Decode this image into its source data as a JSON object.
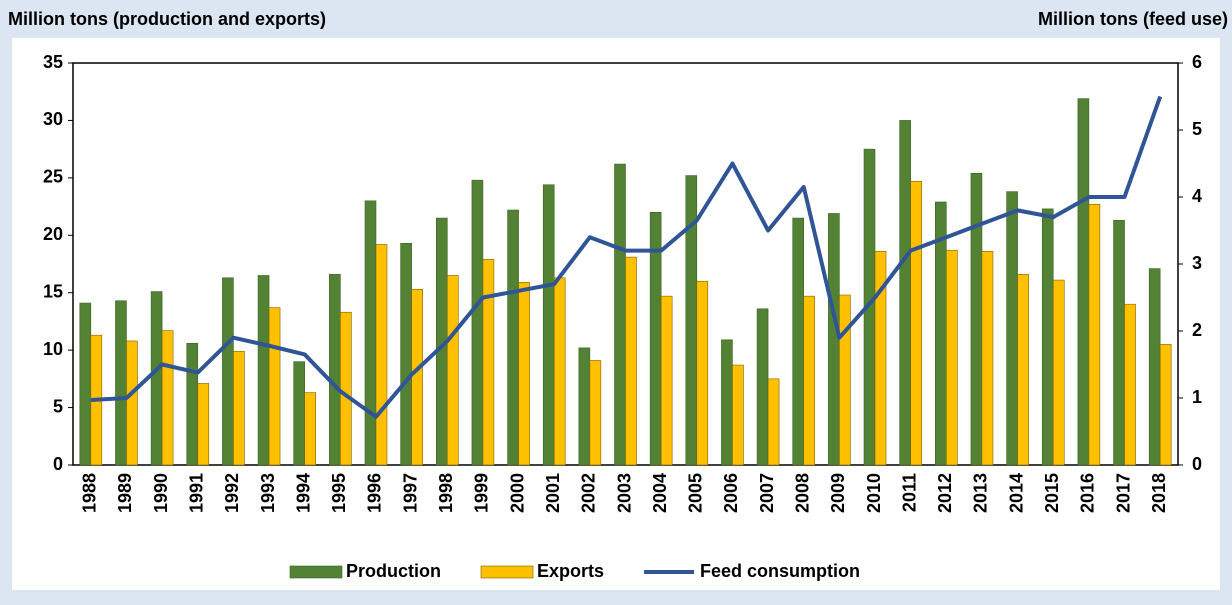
{
  "chart_data": {
    "type": "bar",
    "ylabel": "Million tons (production and exports)",
    "y2label": "Million tons (feed use)",
    "categories": [
      "1988",
      "1989",
      "1990",
      "1991",
      "1992",
      "1993",
      "1994",
      "1995",
      "1996",
      "1997",
      "1998",
      "1999",
      "2000",
      "2001",
      "2002",
      "2003",
      "2004",
      "2005",
      "2006",
      "2007",
      "2008",
      "2009",
      "2010",
      "2011",
      "2012",
      "2013",
      "2014",
      "2015",
      "2016",
      "2017",
      "2018"
    ],
    "series": [
      {
        "name": "Production",
        "type": "bar",
        "color": "#548235",
        "values": [
          14.1,
          14.3,
          15.1,
          10.6,
          16.3,
          16.5,
          9.0,
          16.6,
          23.0,
          19.3,
          21.5,
          24.8,
          22.2,
          24.4,
          10.2,
          26.2,
          22.0,
          25.2,
          10.9,
          13.6,
          21.5,
          21.9,
          27.5,
          30.0,
          22.9,
          25.4,
          23.8,
          22.3,
          31.9,
          21.3,
          17.1
        ]
      },
      {
        "name": "Exports",
        "type": "bar",
        "color": "#ffc000",
        "values": [
          11.3,
          10.8,
          11.7,
          7.1,
          9.9,
          13.7,
          6.3,
          13.3,
          19.2,
          15.3,
          16.5,
          17.9,
          15.9,
          16.3,
          9.1,
          18.1,
          14.7,
          16.0,
          8.7,
          7.5,
          14.7,
          14.8,
          18.6,
          24.7,
          18.7,
          18.6,
          16.6,
          16.1,
          22.7,
          14.0,
          10.5
        ]
      },
      {
        "name": "Feed consumption",
        "type": "line",
        "axis": "y2",
        "color": "#2f5597",
        "values": [
          0.97,
          1.0,
          1.5,
          1.38,
          1.9,
          1.78,
          1.65,
          1.1,
          0.72,
          1.35,
          1.85,
          2.5,
          2.6,
          2.7,
          3.4,
          3.2,
          3.2,
          3.65,
          4.5,
          3.5,
          4.15,
          1.9,
          2.5,
          3.2,
          3.4,
          3.6,
          3.8,
          3.7,
          4.0,
          4.0,
          5.5
        ]
      }
    ],
    "ylim": [
      0,
      35
    ],
    "yticks": [
      0,
      5,
      10,
      15,
      20,
      25,
      30,
      35
    ],
    "y2lim": [
      0,
      6
    ],
    "y2ticks": [
      0,
      1,
      2,
      3,
      4,
      5,
      6
    ],
    "legend": "bottom"
  }
}
